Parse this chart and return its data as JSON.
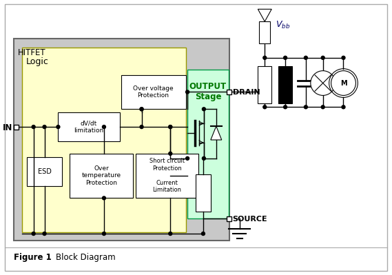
{
  "title_fig": "Figure 1",
  "title_diag": "Block Diagram",
  "bg_color": "#ffffff",
  "border_color": "#aaaaaa",
  "hitfet_color": "#c8c8c8",
  "hitfet_edge": "#666666",
  "logic_color": "#ffffcc",
  "logic_edge": "#999900",
  "output_color": "#ccffdd",
  "output_edge": "#009944",
  "box_white": "#ffffff",
  "box_edge": "#333333",
  "drain_label": "DRAIN",
  "source_label": "SOURCE",
  "in_label": "IN",
  "hitfet_label": "HITFET",
  "logic_label": "Logic",
  "output_label": "OUTPUT\nStage",
  "vbb_label": "V",
  "vbb_sub": "bb",
  "ovv_label": "Over voltage\nProtection",
  "dvdt_label": "dV/dt\nlimitation",
  "overtemp_label": "Over\ntemperature\nProtection",
  "shortckt_label": "Short circuit\nProtection\n\nCurrent\nLimitation",
  "esd_label": "ESD"
}
